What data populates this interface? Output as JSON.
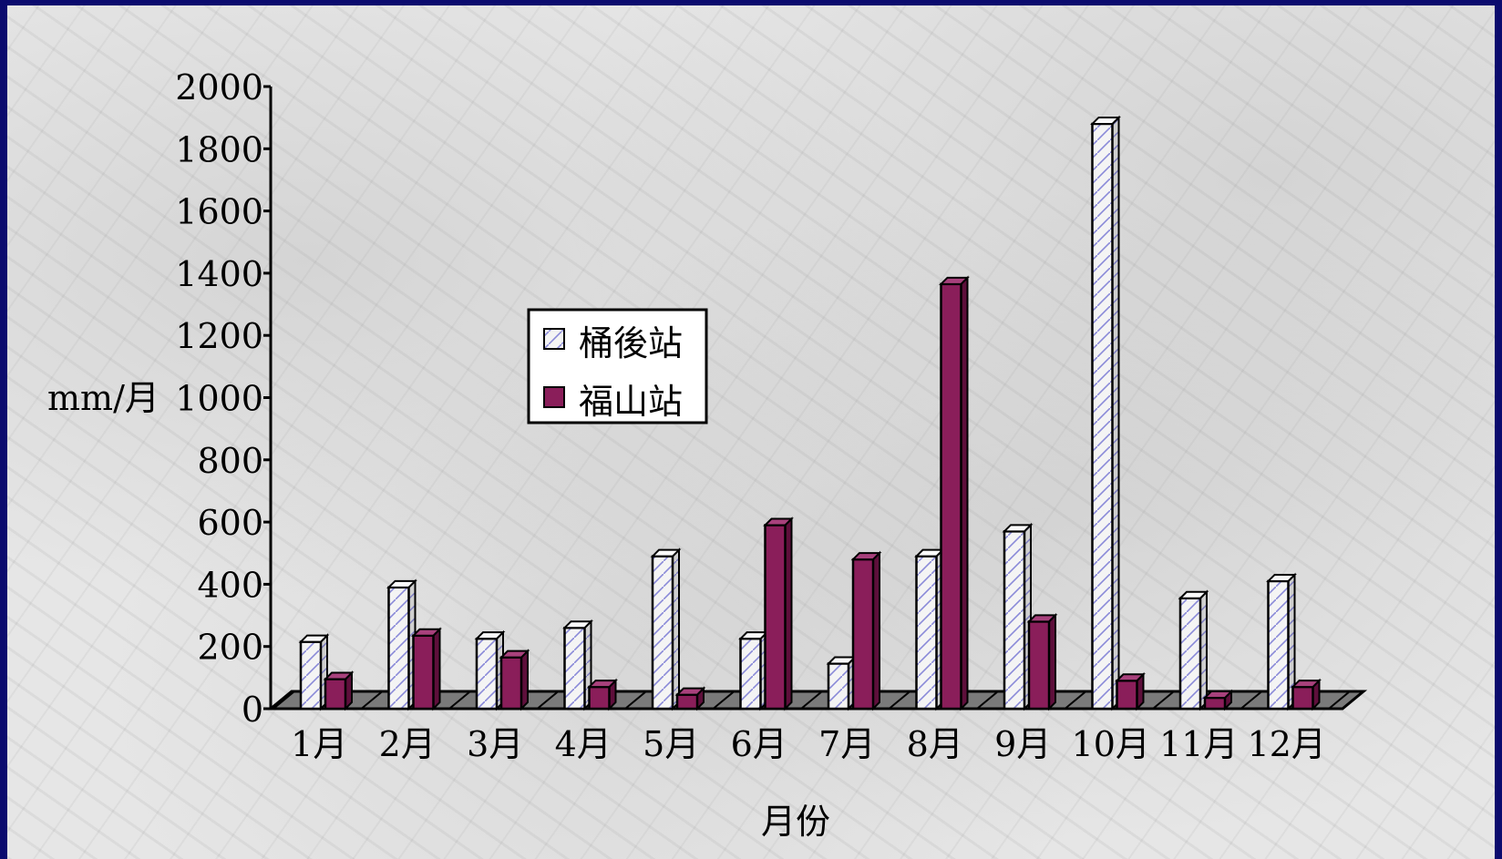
{
  "chart_data": {
    "type": "bar",
    "categories": [
      "1月",
      "2月",
      "3月",
      "4月",
      "5月",
      "6月",
      "7月",
      "8月",
      "9月",
      "10月",
      "11月",
      "12月"
    ],
    "series": [
      {
        "name": "桶後站",
        "values": [
          215,
          390,
          225,
          260,
          490,
          225,
          145,
          490,
          570,
          1880,
          355,
          410
        ]
      },
      {
        "name": "福山站",
        "values": [
          95,
          235,
          165,
          70,
          45,
          590,
          480,
          1365,
          280,
          90,
          35,
          70
        ]
      }
    ],
    "title": "",
    "xlabel": "月份",
    "ylabel": "mm/月",
    "ylim": [
      0,
      2000
    ],
    "yticks": [
      0,
      200,
      400,
      600,
      800,
      1000,
      1200,
      1400,
      1600,
      1800,
      2000
    ],
    "legend": "upper-left, inside plot",
    "grid": false,
    "colors": {
      "series1": "#f4f4f4",
      "series1_pattern": "#8a8ad8",
      "series2": "#8a1e5a",
      "floor": "#7a7a7a",
      "background": "#0b0b6e"
    }
  }
}
